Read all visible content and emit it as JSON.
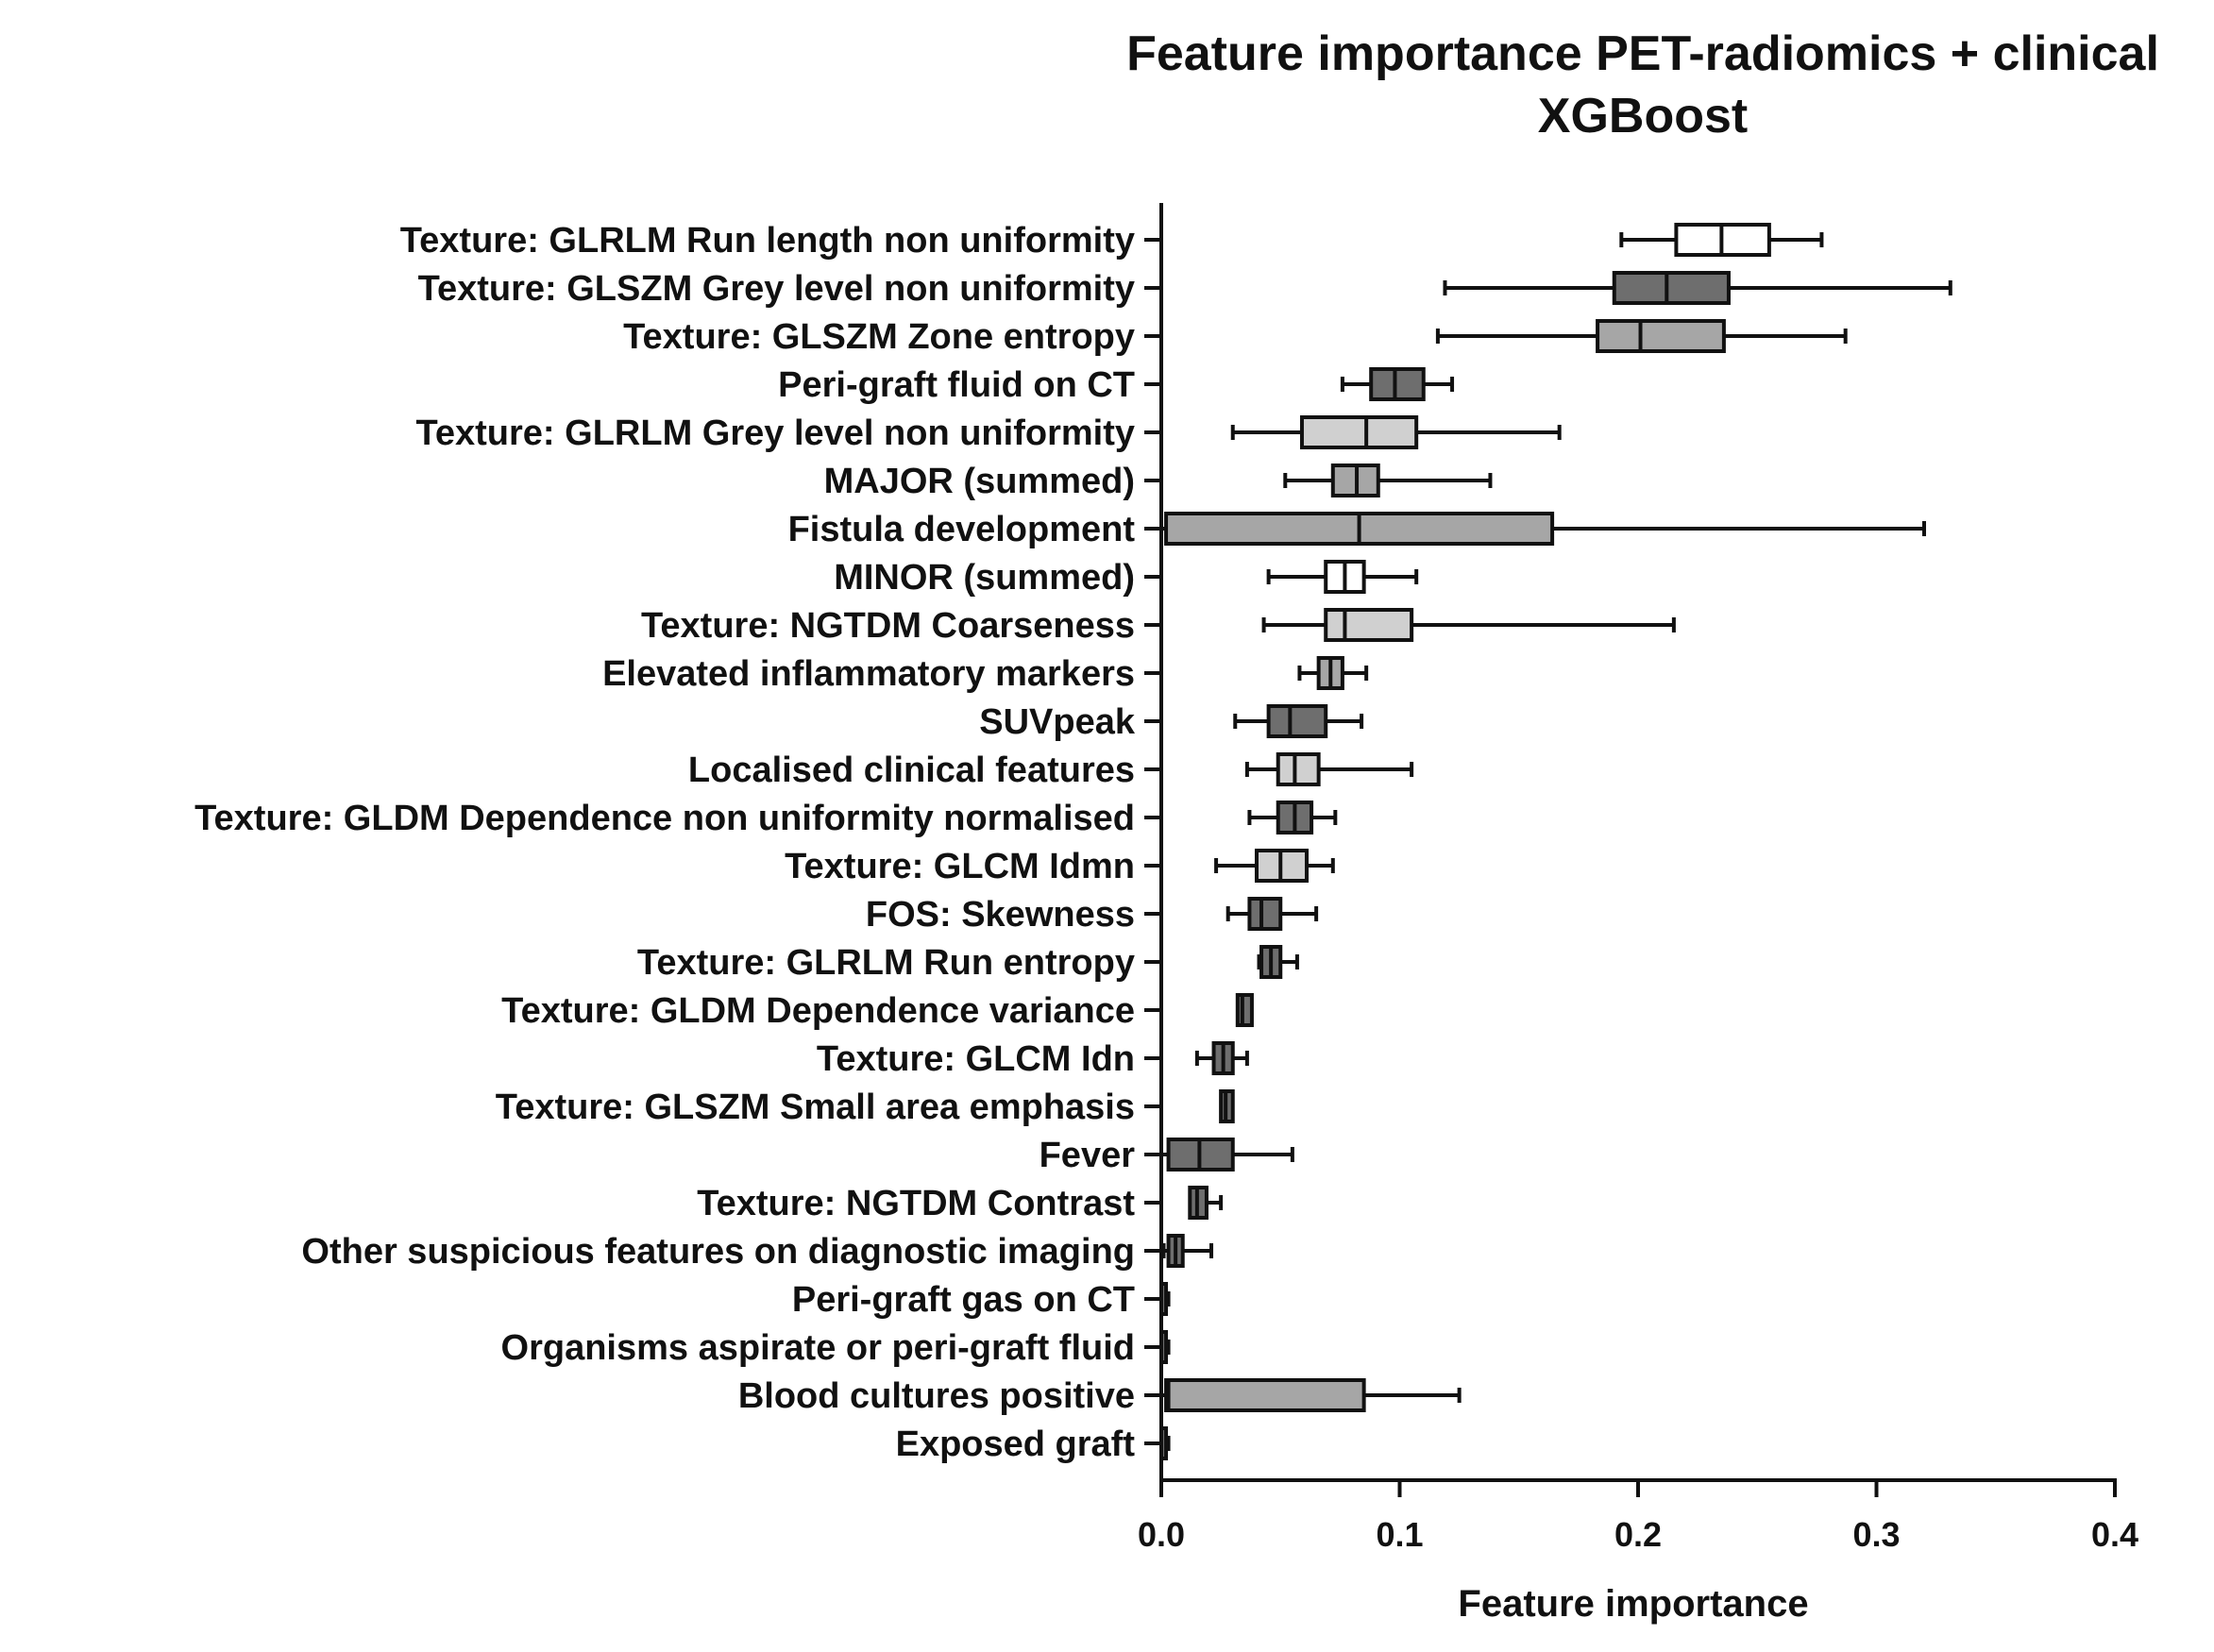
{
  "chart_data": {
    "type": "box",
    "orientation": "horizontal",
    "title": [
      "Feature importance PET-radiomics + clinical",
      "XGBoost"
    ],
    "xlabel": "Feature importance",
    "ylabel": "",
    "xlim": [
      0,
      0.4
    ],
    "xticks": [
      0,
      0.1,
      0.2,
      0.3,
      0.4
    ],
    "xtick_labels": [
      "0.0",
      "0.1",
      "0.2",
      "0.3",
      "0.4"
    ],
    "grid": false,
    "legend": "none",
    "colors": {
      "white": "#ffffff",
      "light": "#d0d0d0",
      "medium": "#a6a6a6",
      "dark": "#6e6e6e",
      "stroke": "#111111"
    },
    "boxes": [
      {
        "label": "Texture: GLRLM Run length non uniformity",
        "min": 0.193,
        "q1": 0.216,
        "median": 0.235,
        "q3": 0.255,
        "max": 0.277,
        "shade": "white"
      },
      {
        "label": "Texture: GLSZM Grey level non uniformity",
        "min": 0.119,
        "q1": 0.19,
        "median": 0.212,
        "q3": 0.238,
        "max": 0.331,
        "shade": "dark"
      },
      {
        "label": "Texture: GLSZM Zone entropy",
        "min": 0.116,
        "q1": 0.183,
        "median": 0.201,
        "q3": 0.236,
        "max": 0.287,
        "shade": "medium"
      },
      {
        "label": "Peri-graft fluid on CT",
        "min": 0.076,
        "q1": 0.088,
        "median": 0.098,
        "q3": 0.11,
        "max": 0.122,
        "shade": "dark"
      },
      {
        "label": "Texture: GLRLM Grey level non uniformity",
        "min": 0.03,
        "q1": 0.059,
        "median": 0.086,
        "q3": 0.107,
        "max": 0.167,
        "shade": "light"
      },
      {
        "label": "MAJOR (summed)",
        "min": 0.052,
        "q1": 0.072,
        "median": 0.082,
        "q3": 0.091,
        "max": 0.138,
        "shade": "medium"
      },
      {
        "label": "Fistula development",
        "min": 0.0,
        "q1": 0.002,
        "median": 0.083,
        "q3": 0.164,
        "max": 0.32,
        "shade": "medium"
      },
      {
        "label": "MINOR (summed)",
        "min": 0.045,
        "q1": 0.069,
        "median": 0.077,
        "q3": 0.085,
        "max": 0.107,
        "shade": "white"
      },
      {
        "label": "Texture: NGTDM Coarseness",
        "min": 0.043,
        "q1": 0.069,
        "median": 0.077,
        "q3": 0.105,
        "max": 0.215,
        "shade": "light"
      },
      {
        "label": "Elevated inflammatory markers",
        "min": 0.058,
        "q1": 0.066,
        "median": 0.071,
        "q3": 0.076,
        "max": 0.086,
        "shade": "medium"
      },
      {
        "label": "SUVpeak",
        "min": 0.031,
        "q1": 0.045,
        "median": 0.054,
        "q3": 0.069,
        "max": 0.084,
        "shade": "dark"
      },
      {
        "label": "Localised clinical features",
        "min": 0.036,
        "q1": 0.049,
        "median": 0.056,
        "q3": 0.066,
        "max": 0.105,
        "shade": "light"
      },
      {
        "label": "Texture: GLDM Dependence non uniformity normalised",
        "min": 0.037,
        "q1": 0.049,
        "median": 0.056,
        "q3": 0.063,
        "max": 0.073,
        "shade": "dark"
      },
      {
        "label": "Texture: GLCM Idmn",
        "min": 0.023,
        "q1": 0.04,
        "median": 0.05,
        "q3": 0.061,
        "max": 0.072,
        "shade": "light"
      },
      {
        "label": "FOS: Skewness",
        "min": 0.028,
        "q1": 0.037,
        "median": 0.042,
        "q3": 0.05,
        "max": 0.065,
        "shade": "dark"
      },
      {
        "label": "Texture: GLRLM Run entropy",
        "min": 0.041,
        "q1": 0.042,
        "median": 0.046,
        "q3": 0.05,
        "max": 0.057,
        "shade": "dark"
      },
      {
        "label": "Texture: GLDM Dependence variance",
        "min": 0.032,
        "q1": 0.032,
        "median": 0.034,
        "q3": 0.038,
        "max": 0.038,
        "shade": "dark"
      },
      {
        "label": "Texture: GLCM Idn",
        "min": 0.015,
        "q1": 0.022,
        "median": 0.026,
        "q3": 0.03,
        "max": 0.036,
        "shade": "dark"
      },
      {
        "label": "Texture: GLSZM Small area emphasis",
        "min": 0.025,
        "q1": 0.025,
        "median": 0.027,
        "q3": 0.03,
        "max": 0.03,
        "shade": "dark"
      },
      {
        "label": "Fever",
        "min": 0.0,
        "q1": 0.003,
        "median": 0.016,
        "q3": 0.03,
        "max": 0.055,
        "shade": "dark"
      },
      {
        "label": "Texture: NGTDM Contrast",
        "min": 0.012,
        "q1": 0.012,
        "median": 0.015,
        "q3": 0.019,
        "max": 0.025,
        "shade": "dark"
      },
      {
        "label": "Other suspicious features on diagnostic imaging",
        "min": 0.001,
        "q1": 0.003,
        "median": 0.006,
        "q3": 0.009,
        "max": 0.021,
        "shade": "dark"
      },
      {
        "label": "Peri-graft gas on CT",
        "min": 0.0,
        "q1": 0.0,
        "median": 0.0,
        "q3": 0.002,
        "max": 0.003,
        "shade": "dark"
      },
      {
        "label": "Organisms aspirate or peri-graft fluid",
        "min": 0.0,
        "q1": 0.0,
        "median": 0.0,
        "q3": 0.002,
        "max": 0.003,
        "shade": "dark"
      },
      {
        "label": "Blood cultures positive",
        "min": 0.0,
        "q1": 0.002,
        "median": 0.003,
        "q3": 0.085,
        "max": 0.125,
        "shade": "medium"
      },
      {
        "label": "Exposed graft",
        "min": 0.0,
        "q1": 0.0,
        "median": 0.0,
        "q3": 0.002,
        "max": 0.003,
        "shade": "dark"
      }
    ]
  }
}
